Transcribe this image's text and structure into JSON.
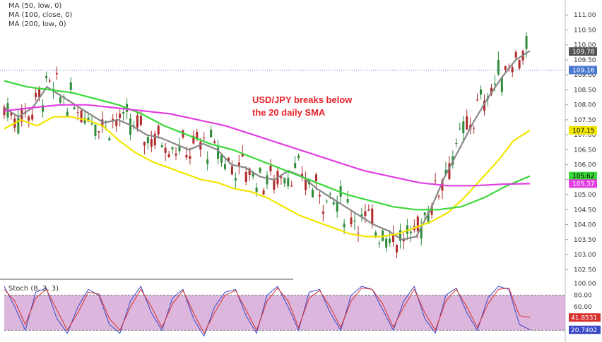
{
  "chart_data": [
    {
      "type": "line",
      "instrument": "USD/JPY",
      "legend": [
        "MA (50, low, 0)",
        "MA (100, close, 0)",
        "MA (200, low, 0)"
      ],
      "annotation": [
        "USD/JPY breaks below",
        "the 20 daily SMA"
      ],
      "y_ticks": [
        111.0,
        110.5,
        110.0,
        109.5,
        109.0,
        108.5,
        108.0,
        107.5,
        107.0,
        106.5,
        106.0,
        105.5,
        105.0,
        104.5,
        104.0,
        103.5,
        103.0,
        102.5
      ],
      "ylim": [
        102.2,
        111.5
      ],
      "current_price": 109.78,
      "reference_level": 109.16,
      "price_labels": [
        {
          "value": 109.78,
          "text": "109.78",
          "color": "#555555"
        },
        {
          "value": 109.16,
          "text": "109.16",
          "color": "#4a78d0"
        },
        {
          "value": 107.15,
          "text": "107.15",
          "color": "#f2e600"
        },
        {
          "value": 105.62,
          "text": "105.62",
          "color": "#39d839"
        },
        {
          "value": 105.37,
          "text": "105.37",
          "color": "#e23ee2"
        }
      ],
      "series": [
        {
          "name": "20 SMA",
          "color": "#888888",
          "values": [
            107.9,
            107.6,
            107.9,
            108.6,
            108.3,
            108.0,
            107.7,
            107.4,
            107.5,
            107.3,
            107.0,
            106.9,
            106.7,
            106.5,
            106.7,
            106.5,
            106.0,
            105.9,
            105.6,
            105.5,
            105.8,
            105.6,
            105.2,
            104.9,
            104.6,
            104.3,
            104.0,
            103.8,
            103.5,
            103.6,
            104.5,
            105.6,
            106.5,
            107.4,
            108.2,
            108.9,
            109.5,
            109.8
          ]
        },
        {
          "name": "50 MA",
          "color": "#f2e600",
          "values": [
            107.2,
            107.5,
            107.3,
            107.6,
            107.6,
            107.5,
            107.3,
            106.8,
            106.4,
            106.1,
            105.9,
            105.7,
            105.5,
            105.4,
            105.2,
            105.1,
            104.9,
            104.6,
            104.3,
            104.1,
            103.9,
            103.7,
            103.6,
            103.6,
            103.7,
            103.9,
            104.1,
            104.4,
            104.9,
            105.5,
            106.1,
            106.8,
            107.15
          ]
        },
        {
          "name": "100 MA",
          "color": "#39d839",
          "values": [
            108.8,
            108.6,
            108.5,
            108.4,
            108.2,
            108.0,
            107.7,
            107.3,
            107.0,
            106.7,
            106.5,
            106.2,
            105.9,
            105.6,
            105.3,
            105.0,
            104.8,
            104.6,
            104.5,
            104.5,
            104.6,
            104.9,
            105.3,
            105.62
          ]
        },
        {
          "name": "200 MA",
          "color": "#e23ee2",
          "values": [
            107.8,
            107.9,
            108.0,
            108.0,
            107.9,
            107.8,
            107.7,
            107.5,
            107.3,
            107.0,
            106.7,
            106.4,
            106.1,
            105.8,
            105.6,
            105.4,
            105.3,
            105.3,
            105.35,
            105.37
          ]
        }
      ]
    },
    {
      "type": "line",
      "title": "Stoch (8, 3, 3)",
      "y_ticks": [
        100.0,
        80.0,
        60.0,
        40.0,
        20.0
      ],
      "ylim": [
        0,
        100
      ],
      "overbought": 80,
      "oversold": 20,
      "current_value": 41.8531,
      "value_labels": [
        {
          "value": 41.8531,
          "text": "41.8531",
          "color": "#d9302c"
        },
        {
          "value": 20.7402,
          "text": "20.7402",
          "color": "#3a48c8"
        }
      ],
      "series": [
        {
          "name": "%K",
          "color": "#3a48c8",
          "values": [
            95,
            60,
            20,
            85,
            92,
            40,
            15,
            60,
            90,
            80,
            30,
            15,
            70,
            95,
            50,
            20,
            75,
            90,
            40,
            10,
            60,
            85,
            90,
            45,
            15,
            80,
            95,
            60,
            20,
            85,
            90,
            50,
            20,
            80,
            95,
            90,
            55,
            20,
            70,
            95,
            40,
            15,
            80,
            92,
            50,
            20,
            75,
            95,
            90,
            30,
            20.7
          ]
        },
        {
          "name": "%D",
          "color": "#d9302c",
          "values": [
            90,
            70,
            30,
            75,
            90,
            55,
            20,
            50,
            85,
            82,
            40,
            20,
            60,
            90,
            60,
            25,
            65,
            88,
            50,
            15,
            50,
            80,
            88,
            55,
            20,
            70,
            92,
            70,
            25,
            75,
            88,
            60,
            25,
            70,
            92,
            90,
            65,
            25,
            60,
            90,
            50,
            20,
            70,
            90,
            60,
            25,
            65,
            90,
            92,
            45,
            41.9
          ]
        }
      ]
    }
  ]
}
